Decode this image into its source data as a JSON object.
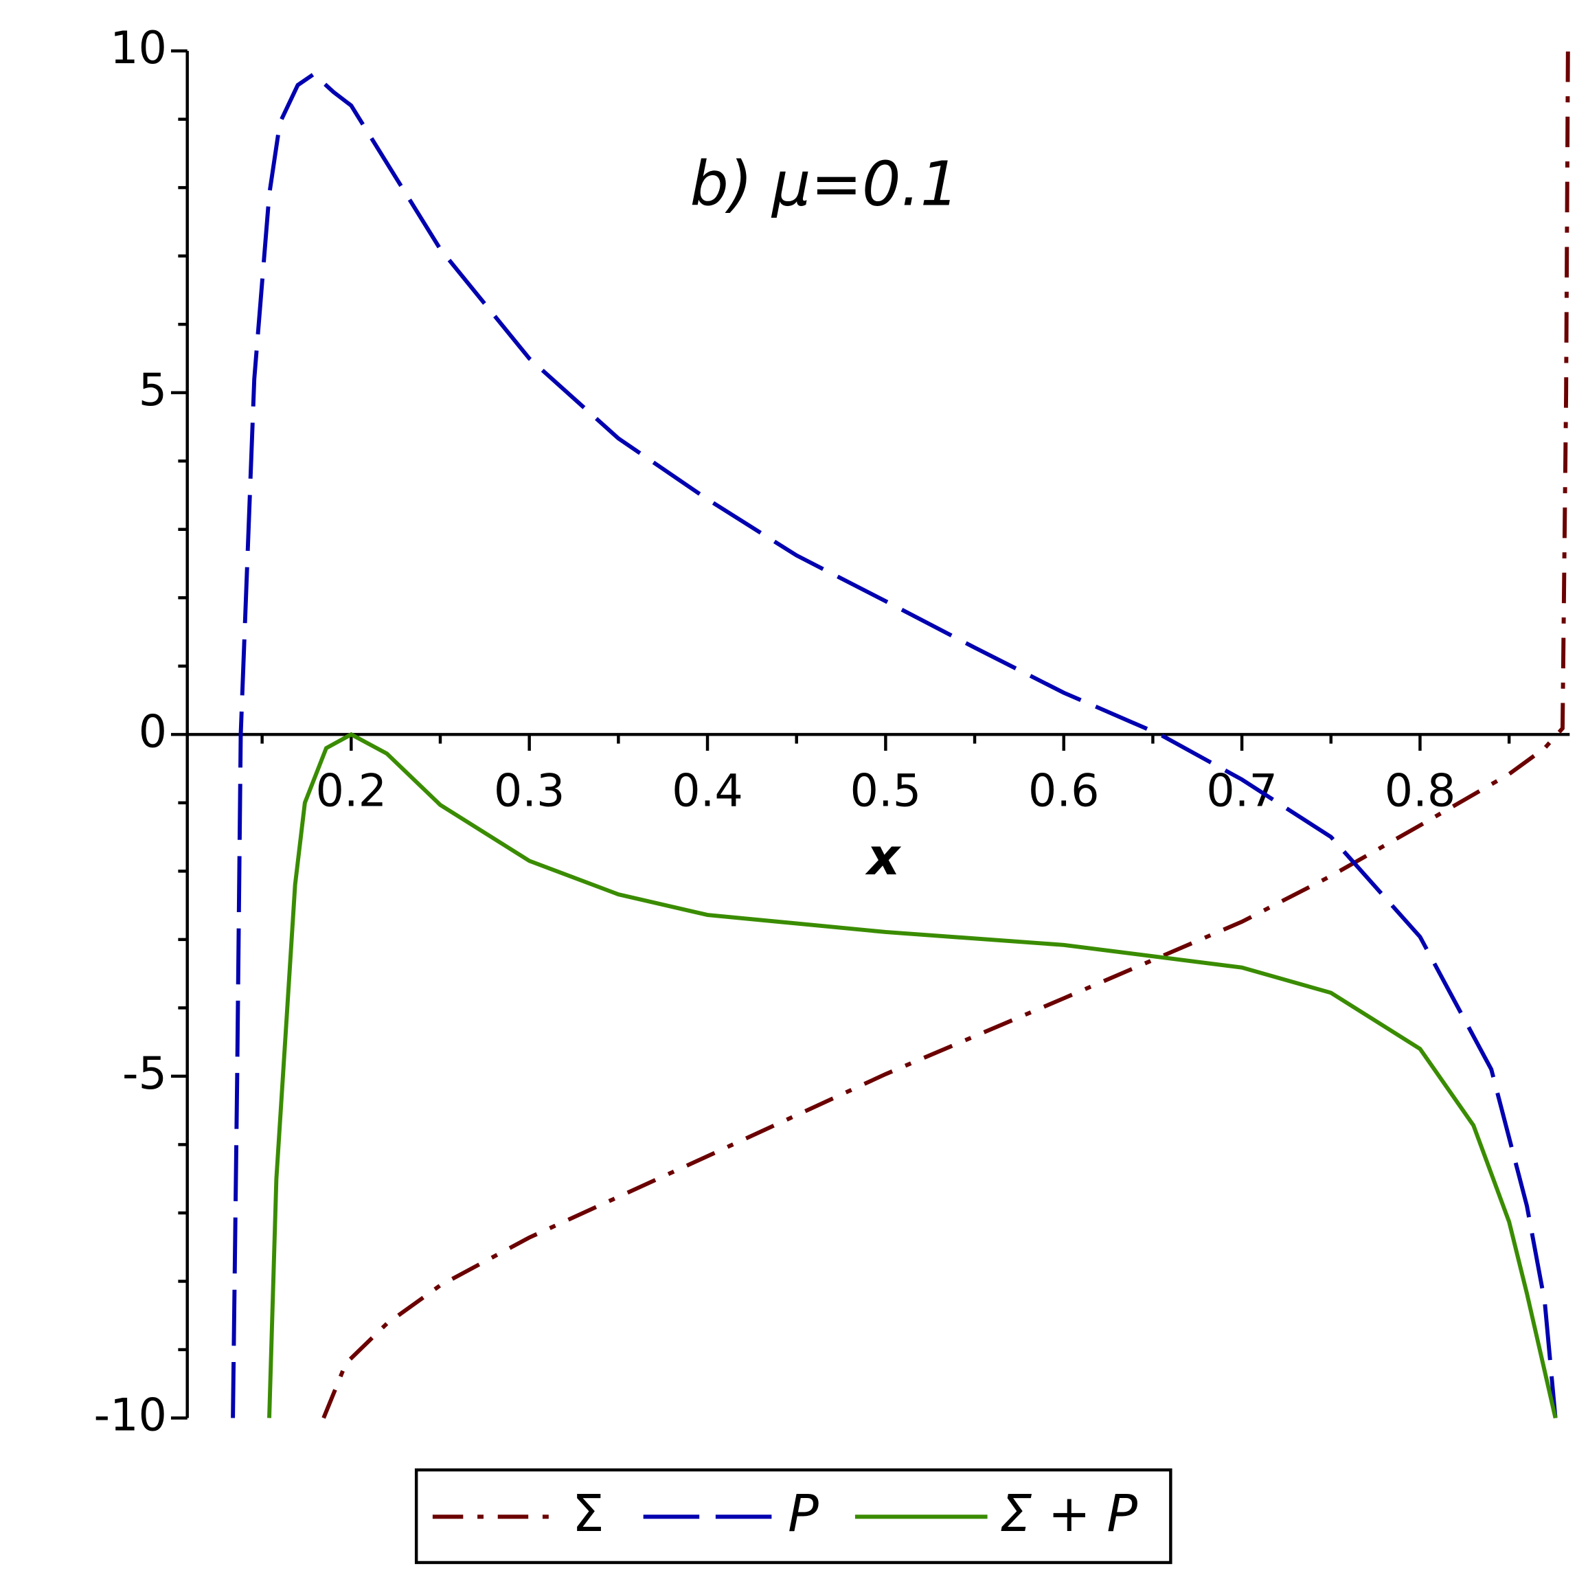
{
  "chart_data": {
    "type": "line",
    "annotation": "b) μ=0.1",
    "x_label": "x",
    "xlim": [
      0.108,
      0.884
    ],
    "ylim": [
      -10,
      10
    ],
    "xticks": [
      0.2,
      0.3,
      0.4,
      0.5,
      0.6,
      0.7,
      0.8
    ],
    "xminorticks": [
      0.15,
      0.25,
      0.35,
      0.45,
      0.55,
      0.65,
      0.75,
      0.85
    ],
    "yticks": [
      -10,
      -5,
      0,
      5,
      10
    ],
    "yminorticks": [
      -9,
      -8,
      -7,
      -6,
      -4,
      -3,
      -2,
      -1,
      1,
      2,
      3,
      4,
      6,
      7,
      8,
      9
    ],
    "legend": "bottom",
    "series": [
      {
        "name": "Σ",
        "color": "#6b0000",
        "dash": "dashdot",
        "x": [
          0.1845,
          0.197,
          0.22,
          0.25,
          0.3,
          0.4,
          0.5,
          0.6,
          0.7,
          0.75,
          0.8,
          0.85,
          0.87,
          0.88,
          0.882,
          0.883
        ],
        "values": [
          -10,
          -9.2,
          -8.62,
          -8.06,
          -7.36,
          -6.17,
          -4.97,
          -3.86,
          -2.74,
          -2.07,
          -1.33,
          -0.58,
          -0.2,
          0.09,
          5,
          10
        ]
      },
      {
        "name": "P",
        "color": "#0000b0",
        "dash": "dash",
        "x": [
          0.1336,
          0.136,
          0.138,
          0.1456,
          0.154,
          0.16,
          0.17,
          0.179,
          0.19,
          0.2,
          0.25,
          0.3,
          0.35,
          0.4,
          0.45,
          0.5,
          0.55,
          0.6,
          0.654,
          0.7,
          0.75,
          0.8,
          0.82,
          0.84,
          0.86,
          0.87,
          0.876
        ],
        "values": [
          -10,
          -5,
          0,
          5.2,
          7.9,
          8.95,
          9.5,
          9.66,
          9.4,
          9.2,
          7.1,
          5.5,
          4.33,
          3.44,
          2.62,
          1.95,
          1.27,
          0.61,
          0,
          -0.66,
          -1.5,
          -2.96,
          -3.93,
          -4.9,
          -6.9,
          -8.3,
          -10
        ]
      },
      {
        "name": "Σ + P",
        "color": "#3a8c00",
        "dash": "solid",
        "x": [
          0.154,
          0.158,
          0.163,
          0.1685,
          0.174,
          0.186,
          0.2,
          0.22,
          0.25,
          0.3,
          0.35,
          0.4,
          0.5,
          0.6,
          0.7,
          0.75,
          0.8,
          0.83,
          0.85,
          0.86,
          0.876
        ],
        "values": [
          -10,
          -6.5,
          -4.45,
          -2.2,
          -1.0,
          -0.2,
          0,
          -0.28,
          -1.03,
          -1.85,
          -2.34,
          -2.64,
          -2.89,
          -3.08,
          -3.41,
          -3.78,
          -4.6,
          -5.72,
          -7.13,
          -8.18,
          -10
        ]
      }
    ]
  }
}
